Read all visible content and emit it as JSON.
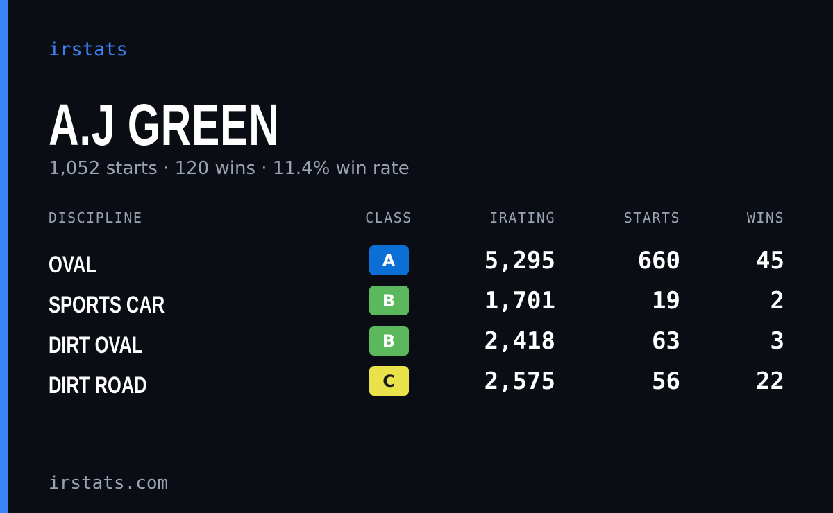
{
  "brand": "irstats",
  "name": "A.J GREEN",
  "summary": "1,052 starts · 120 wins · 11.4% win rate",
  "table": {
    "headers": [
      "DISCIPLINE",
      "CLASS",
      "IRATING",
      "STARTS",
      "WINS"
    ],
    "rows": [
      {
        "discipline": "OVAL",
        "class": "A",
        "class_color": "#0b6fd6",
        "class_text_color": "#ffffff",
        "irating": "5,295",
        "starts": "660",
        "wins": "45"
      },
      {
        "discipline": "SPORTS CAR",
        "class": "B",
        "class_color": "#5cb85c",
        "class_text_color": "#ffffff",
        "irating": "1,701",
        "starts": "19",
        "wins": "2"
      },
      {
        "discipline": "DIRT OVAL",
        "class": "B",
        "class_color": "#5cb85c",
        "class_text_color": "#ffffff",
        "irating": "2,418",
        "starts": "63",
        "wins": "3"
      },
      {
        "discipline": "DIRT ROAD",
        "class": "C",
        "class_color": "#e9e24a",
        "class_text_color": "#1a1a1a",
        "irating": "2,575",
        "starts": "56",
        "wins": "22"
      }
    ]
  },
  "footer": "irstats.com"
}
